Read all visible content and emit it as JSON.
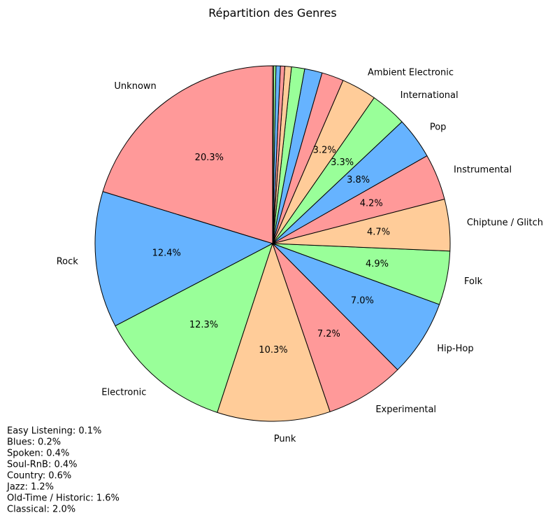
{
  "chart_data": {
    "type": "pie",
    "title": "Répartition des Genres",
    "start_angle_deg": 90,
    "direction": "counterclockwise",
    "edge_color": "#000000",
    "palette": [
      "#ff9999",
      "#66b3ff",
      "#99ff99",
      "#ffcc99"
    ],
    "slices": [
      {
        "label": "Unknown",
        "value": 20.3,
        "pct_label": "20.3%"
      },
      {
        "label": "Rock",
        "value": 12.4,
        "pct_label": "12.4%"
      },
      {
        "label": "Electronic",
        "value": 12.3,
        "pct_label": "12.3%"
      },
      {
        "label": "Punk",
        "value": 10.3,
        "pct_label": "10.3%"
      },
      {
        "label": "Experimental",
        "value": 7.2,
        "pct_label": "7.2%"
      },
      {
        "label": "Hip-Hop",
        "value": 7.0,
        "pct_label": "7.0%"
      },
      {
        "label": "Folk",
        "value": 4.9,
        "pct_label": "4.9%"
      },
      {
        "label": "Chiptune / Glitch",
        "value": 4.7,
        "pct_label": "4.7%"
      },
      {
        "label": "Instrumental",
        "value": 4.2,
        "pct_label": "4.2%"
      },
      {
        "label": "Pop",
        "value": 3.8,
        "pct_label": "3.8%"
      },
      {
        "label": "International",
        "value": 3.3,
        "pct_label": "3.3%"
      },
      {
        "label": "Ambient Electronic",
        "value": 3.2,
        "pct_label": "3.2%"
      },
      {
        "label": "",
        "value": 2.0,
        "pct_label": ""
      },
      {
        "label": "",
        "value": 1.6,
        "pct_label": ""
      },
      {
        "label": "",
        "value": 1.2,
        "pct_label": ""
      },
      {
        "label": "",
        "value": 0.6,
        "pct_label": ""
      },
      {
        "label": "",
        "value": 0.4,
        "pct_label": ""
      },
      {
        "label": "",
        "value": 0.4,
        "pct_label": ""
      },
      {
        "label": "",
        "value": 0.2,
        "pct_label": ""
      },
      {
        "label": "",
        "value": 0.1,
        "pct_label": ""
      }
    ],
    "small_genres_note": [
      "Easy Listening: 0.1%",
      "Blues: 0.2%",
      "Spoken: 0.4%",
      "Soul-RnB: 0.4%",
      "Country: 0.6%",
      "Jazz: 1.2%",
      "Old-Time / Historic: 1.6%",
      "Classical: 2.0%"
    ]
  }
}
